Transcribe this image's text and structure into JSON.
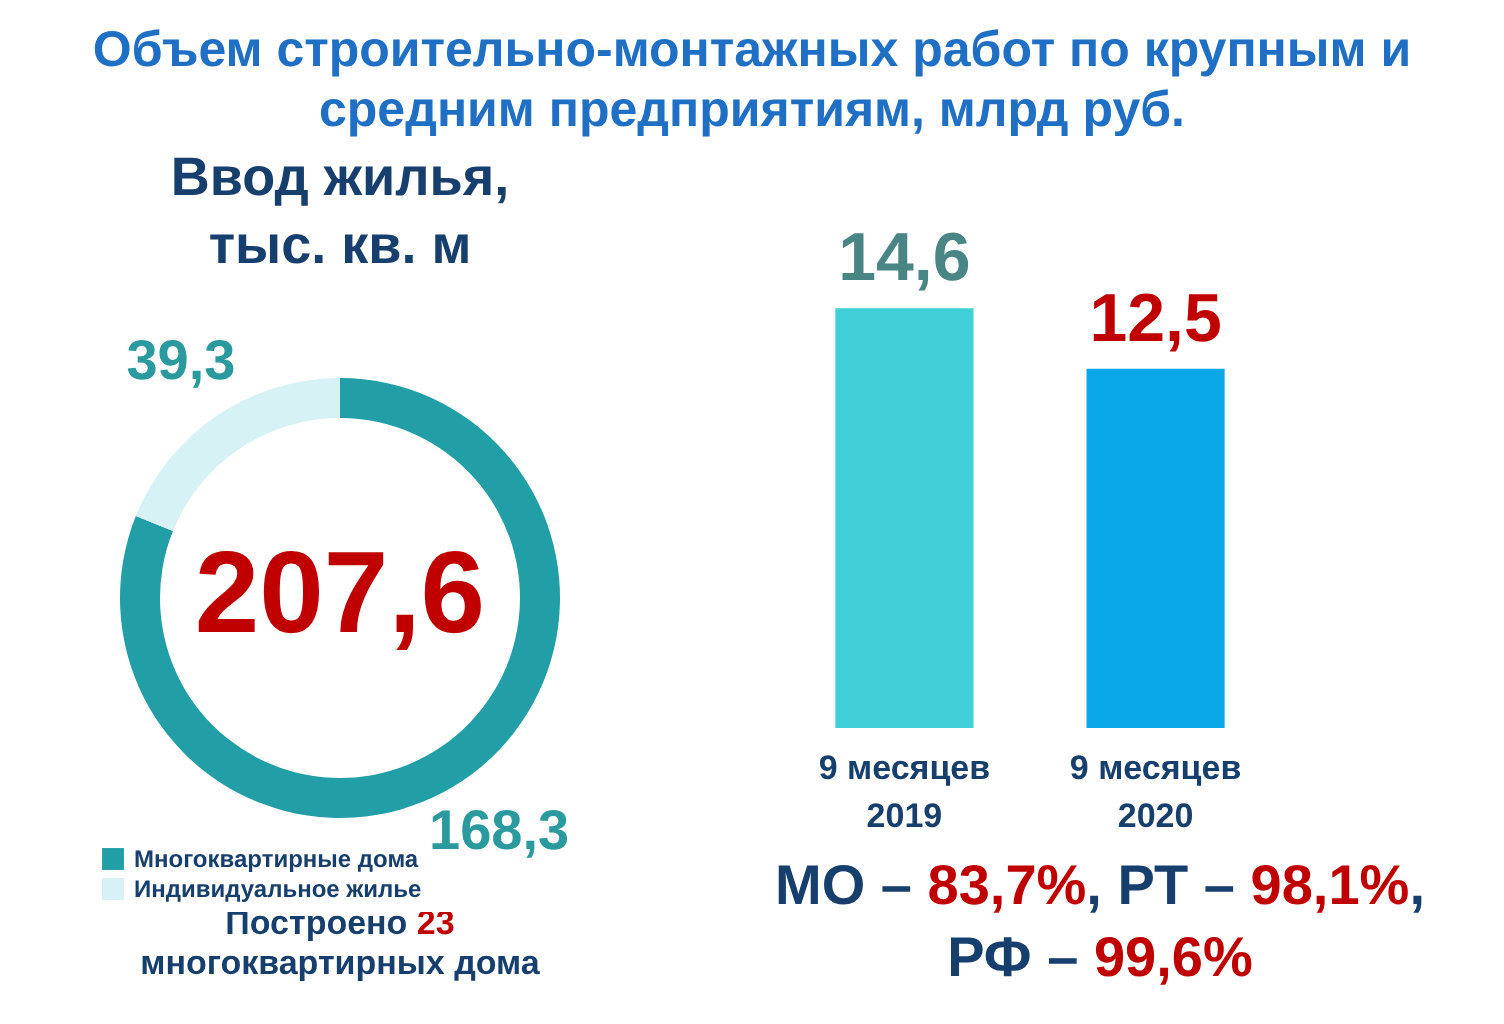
{
  "chart_data": [
    {
      "type": "donut",
      "title": "Ввод жилья, тыс. кв. м",
      "categories": [
        "Многоквартирные дома",
        "Индивидуальное жилье"
      ],
      "values": [
        168.3,
        39.3
      ],
      "colors": [
        "#229ea6",
        "#d6f2f5"
      ],
      "value_labels": [
        "168,3",
        "39,3"
      ],
      "legend": "bottom",
      "annotations": [
        "207,6",
        "Построено 23 многоквартирных дома"
      ]
    },
    {
      "type": "bar",
      "title": "Объем строительно-монтажных работ по крупным и средним предприятиям, млрд руб.",
      "categories": [
        "9 месяцев 2019",
        "9 месяцев 2020"
      ],
      "values": [
        14.6,
        12.5
      ],
      "colors": [
        "#3fd0d8",
        "#0aa8e8"
      ],
      "value_labels": [
        "14,6",
        "12,5"
      ],
      "annotations": [
        "МО – 83,7%, РТ – 98,1%, РФ – 99,6%"
      ]
    }
  ]
}
